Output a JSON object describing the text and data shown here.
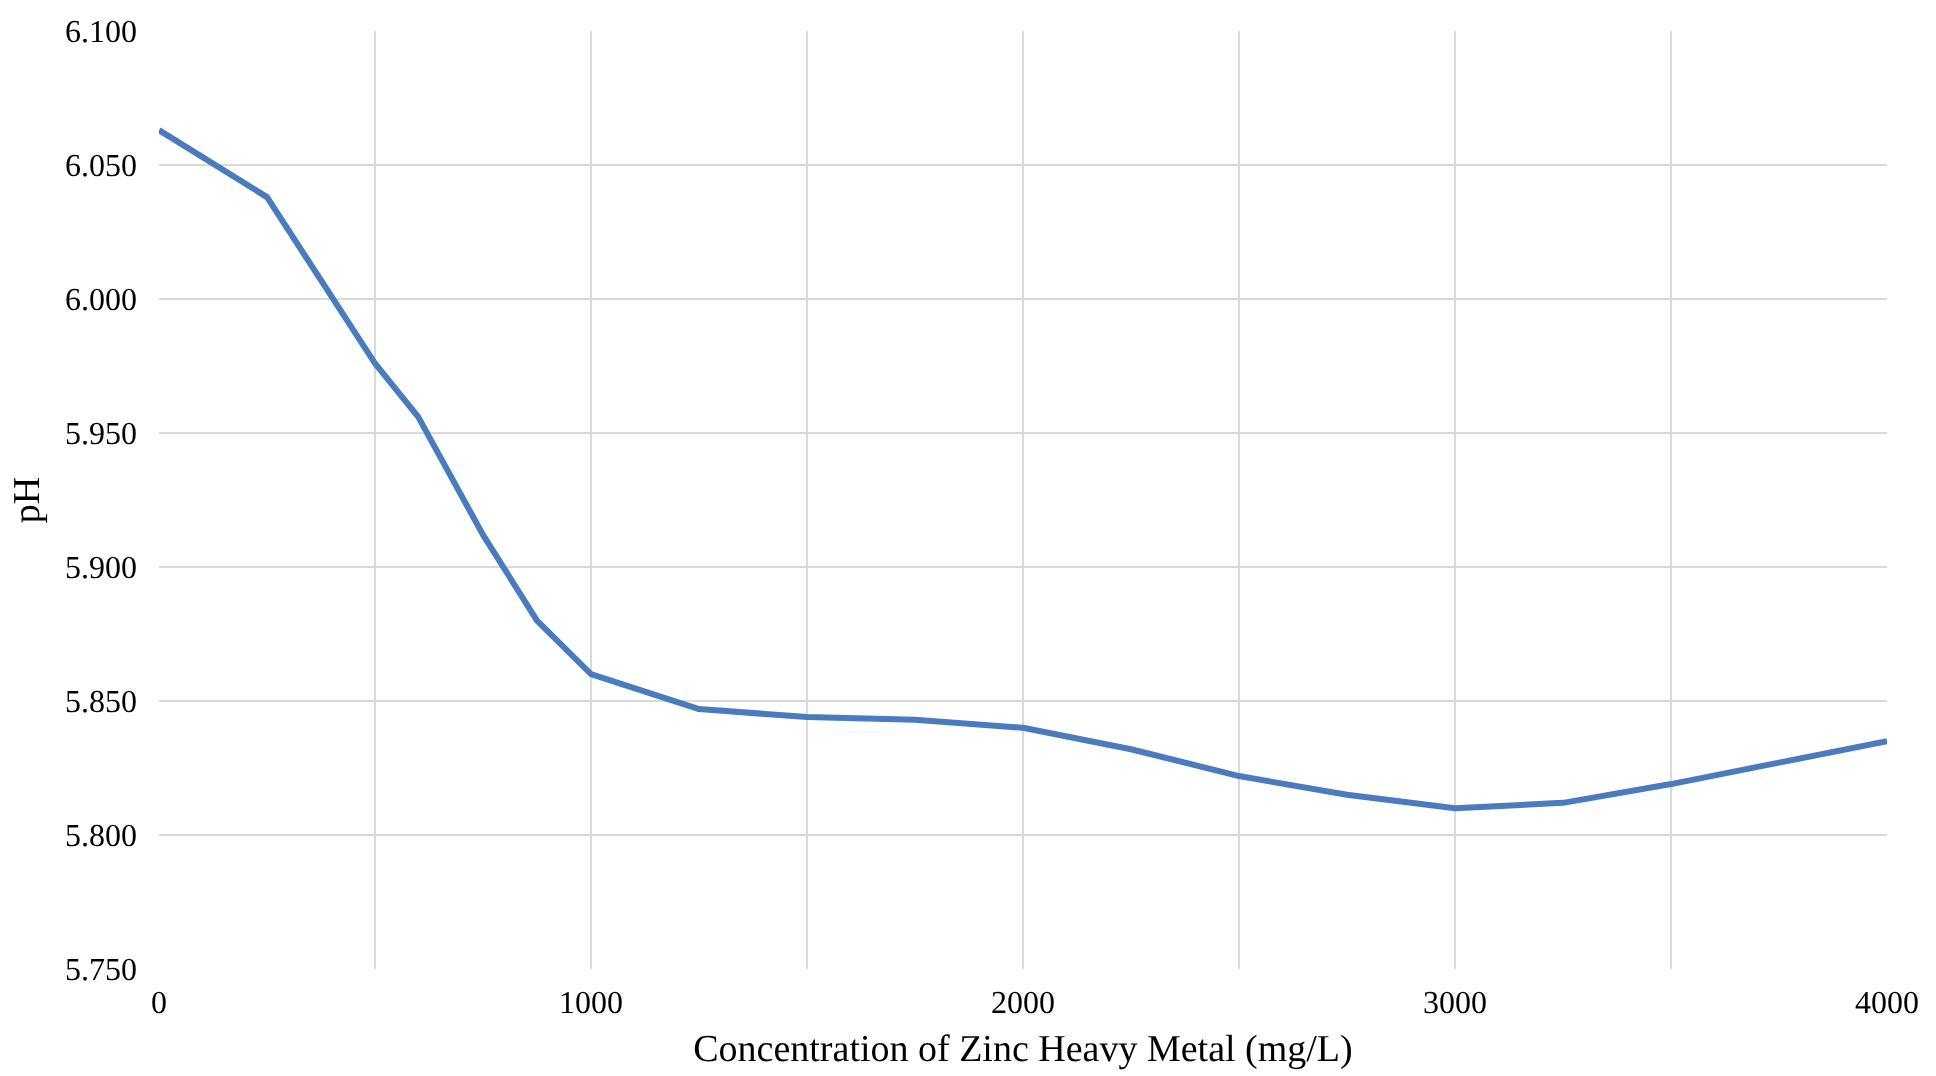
{
  "chart_data": {
    "type": "line",
    "xlabel": "Concentration of Zinc Heavy Metal (mg/L)",
    "ylabel": "pH",
    "x": [
      0,
      250,
      500,
      600,
      750,
      875,
      1000,
      1250,
      1500,
      1750,
      2000,
      2250,
      2500,
      2750,
      3000,
      3250,
      3500,
      3750,
      4000
    ],
    "series": [
      {
        "color": "#4a7bbf",
        "values": [
          6.063,
          6.038,
          5.976,
          5.956,
          5.912,
          5.88,
          5.86,
          5.847,
          5.844,
          5.843,
          5.84,
          5.832,
          5.822,
          5.815,
          5.81,
          5.812,
          5.819,
          5.827,
          5.835
        ]
      }
    ],
    "xlim": [
      0,
      4000
    ],
    "xticks": [
      0,
      {
        "value": 500,
        "label": null
      },
      1000,
      {
        "value": 1500,
        "label": null
      },
      2000,
      {
        "value": 2500,
        "label": null
      },
      3000,
      {
        "value": 3500,
        "label": null
      },
      4000
    ],
    "ylim": [
      5.75,
      6.1
    ],
    "yticks": [
      {
        "value": 5.75,
        "label": "5.750"
      },
      {
        "value": 5.8,
        "label": "5.800"
      },
      {
        "value": 5.85,
        "label": "5.850"
      },
      {
        "value": 5.9,
        "label": "5.900"
      },
      {
        "value": 5.95,
        "label": "5.950"
      },
      {
        "value": 6.0,
        "label": "6.000"
      },
      {
        "value": 6.05,
        "label": "6.050"
      },
      {
        "value": 6.1,
        "label": "6.100"
      }
    ],
    "grid": true,
    "marker": "none",
    "line_style": "solid"
  }
}
